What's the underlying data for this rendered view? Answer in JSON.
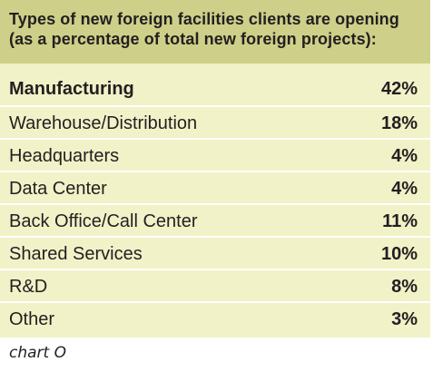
{
  "chart_data": {
    "type": "table",
    "title": "Types of new foreign facilities clients are opening (as a percentage of total new foreign projects):",
    "categories": [
      "Manufacturing",
      "Warehouse/Distribution",
      "Headquarters",
      "Data Center",
      "Back Office/Call Center",
      "Shared Services",
      "R&D",
      "Other"
    ],
    "values": [
      42,
      18,
      4,
      4,
      11,
      10,
      8,
      3
    ],
    "display_values": [
      "42%",
      "18%",
      "4%",
      "4%",
      "11%",
      "10%",
      "8%",
      "3%"
    ],
    "unit": "%",
    "emphasized_category": "Manufacturing"
  },
  "caption": "chart O",
  "colors": {
    "header_background": "#ced089",
    "body_background": "#f1f2c8",
    "row_divider": "#ffffff",
    "text": "#231f20"
  }
}
